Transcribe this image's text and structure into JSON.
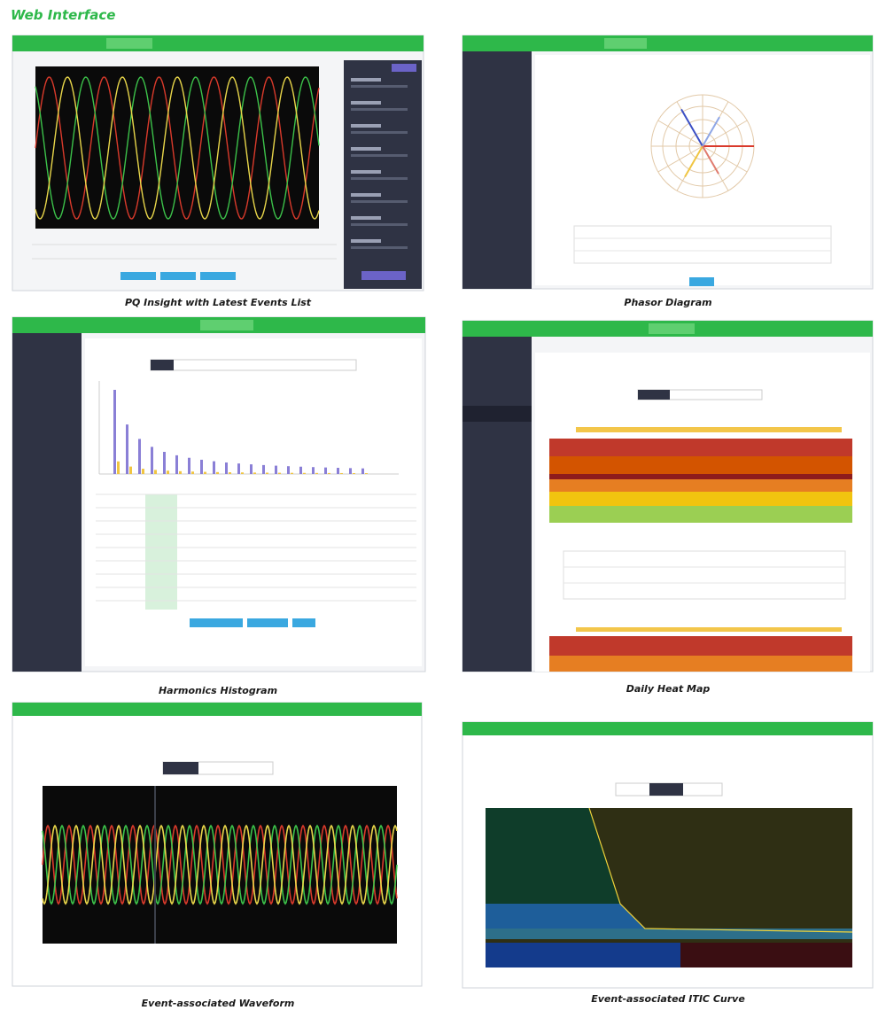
{
  "header": {
    "title": "Web Interface"
  },
  "panels": [
    {
      "caption": "PQ Insight with Latest Events List"
    },
    {
      "caption": "Phasor Diagram"
    },
    {
      "caption": "Harmonics Histogram"
    },
    {
      "caption": "Daily Heat Map"
    },
    {
      "caption": "Event-associated Waveform"
    },
    {
      "caption": "Event-associated ITIC Curve"
    }
  ]
}
